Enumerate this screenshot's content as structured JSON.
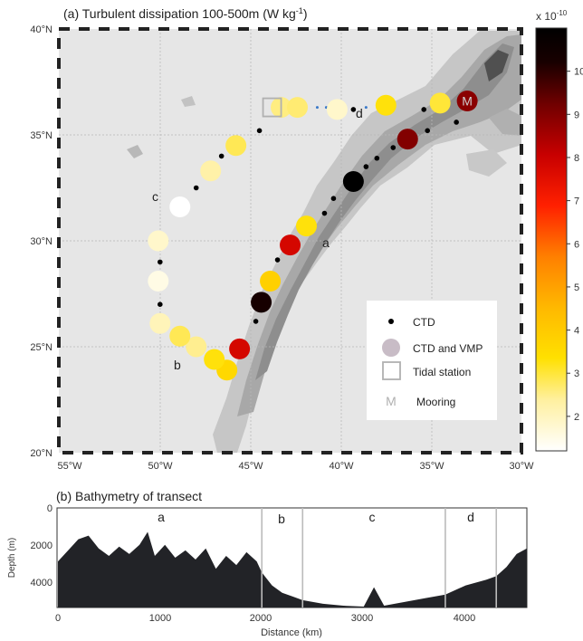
{
  "panel_a": {
    "title_main": "(a) Turbulent dissipation 100-500m (W kg",
    "title_exp": "-1",
    "title_end": ")"
  },
  "panel_b": {
    "title": "(b) Bathymetry of transect"
  },
  "colorbar": {
    "multiplier_base": "x 10",
    "multiplier_exp": "-10"
  },
  "legend": {
    "items": [
      {
        "label": "CTD"
      },
      {
        "label": "CTD and VMP"
      },
      {
        "label": "Tidal station"
      },
      {
        "label": "Mooring"
      }
    ],
    "mooring_letter": "M"
  },
  "section_labels_map": [
    "a",
    "b",
    "c",
    "d"
  ],
  "section_labels_bathy": [
    "a",
    "b",
    "c",
    "d"
  ],
  "chart_data": [
    {
      "type": "scatter",
      "title": "(a) Turbulent dissipation 100-500m (W kg-1)",
      "x_ticks": [
        "55°W",
        "50°W",
        "45°W",
        "40°W",
        "35°W",
        "30°W"
      ],
      "y_ticks": [
        "20°N",
        "25°N",
        "30°N",
        "35°N",
        "40°N"
      ],
      "xlim": [
        -55,
        -30
      ],
      "ylim": [
        20,
        40
      ],
      "colorbar_ticks": [
        "2",
        "3",
        "4",
        "5",
        "6",
        "7",
        "8",
        "9",
        "10"
      ],
      "colorbar_range": [
        1.2,
        11
      ],
      "colorbar_colors": [
        "#ffffff",
        "#fff0a0",
        "#ffe000",
        "#ffb800",
        "#ff7f00",
        "#ff2000",
        "#c80000",
        "#700000",
        "#180000",
        "#000000"
      ],
      "tidal_station": {
        "lon": -43.8,
        "lat": 36.3
      },
      "mooring": {
        "lon": -33.0,
        "lat": 36.6
      },
      "vmp_stations": [
        {
          "lon": -43.3,
          "lat": 36.3,
          "eps": 2.5
        },
        {
          "lon": -42.4,
          "lat": 36.3,
          "eps": 2.6
        },
        {
          "lon": -40.2,
          "lat": 36.2,
          "eps": 1.8
        },
        {
          "lon": -37.5,
          "lat": 36.4,
          "eps": 3.3
        },
        {
          "lon": -34.5,
          "lat": 36.5,
          "eps": 3.0
        },
        {
          "lon": -33.0,
          "lat": 36.6,
          "eps": 8.5
        },
        {
          "lon": -36.3,
          "lat": 34.8,
          "eps": 8.6
        },
        {
          "lon": -39.3,
          "lat": 32.8,
          "eps": 11.0
        },
        {
          "lon": -41.9,
          "lat": 30.7,
          "eps": 3.3
        },
        {
          "lon": -42.8,
          "lat": 29.8,
          "eps": 7.5
        },
        {
          "lon": -43.9,
          "lat": 28.1,
          "eps": 3.8
        },
        {
          "lon": -44.4,
          "lat": 27.1,
          "eps": 10.0
        },
        {
          "lon": -45.6,
          "lat": 24.9,
          "eps": 7.5
        },
        {
          "lon": -46.3,
          "lat": 23.9,
          "eps": 3.6
        },
        {
          "lon": -47.0,
          "lat": 24.4,
          "eps": 3.3
        },
        {
          "lon": -48.0,
          "lat": 25.0,
          "eps": 2.4
        },
        {
          "lon": -48.9,
          "lat": 25.5,
          "eps": 2.8
        },
        {
          "lon": -50.0,
          "lat": 26.1,
          "eps": 2.0
        },
        {
          "lon": -50.1,
          "lat": 28.1,
          "eps": 1.5
        },
        {
          "lon": -50.1,
          "lat": 30.0,
          "eps": 1.8
        },
        {
          "lon": -48.9,
          "lat": 31.6,
          "eps": 1.2
        },
        {
          "lon": -47.2,
          "lat": 33.3,
          "eps": 2.2
        },
        {
          "lon": -45.8,
          "lat": 34.5,
          "eps": 2.8
        }
      ],
      "ctd_stations": [
        {
          "lon": -44.5,
          "lat": 35.2
        },
        {
          "lon": -46.6,
          "lat": 34.0
        },
        {
          "lon": -48.0,
          "lat": 32.5
        },
        {
          "lon": -50.0,
          "lat": 29.0
        },
        {
          "lon": -50.0,
          "lat": 27.0
        },
        {
          "lon": -39.3,
          "lat": 36.2
        },
        {
          "lon": -35.4,
          "lat": 36.2
        },
        {
          "lon": -33.6,
          "lat": 35.6
        },
        {
          "lon": -35.2,
          "lat": 35.2
        },
        {
          "lon": -37.1,
          "lat": 34.4
        },
        {
          "lon": -38.0,
          "lat": 33.9
        },
        {
          "lon": -38.6,
          "lat": 33.5
        },
        {
          "lon": -40.4,
          "lat": 32.0
        },
        {
          "lon": -40.9,
          "lat": 31.3
        },
        {
          "lon": -43.5,
          "lat": 29.1
        },
        {
          "lon": -44.7,
          "lat": 26.2
        }
      ],
      "path_extra_dots": [
        {
          "lon": -41.3,
          "lat": 36.3
        },
        {
          "lon": -40.8,
          "lat": 36.3
        },
        {
          "lon": -38.6,
          "lat": 36.3
        }
      ]
    },
    {
      "type": "area",
      "title": "(b) Bathymetry of transect",
      "xlabel": "Distance (km)",
      "ylabel": "Depth (m)",
      "x_ticks": [
        "0",
        "1000",
        "2000",
        "3000",
        "4000"
      ],
      "y_ticks": [
        "0",
        "2000",
        "4000"
      ],
      "xlim": [
        0,
        4600
      ],
      "ylim": [
        5400,
        0
      ],
      "section_boundaries_km": [
        2000,
        2400,
        3800,
        4300
      ],
      "depth_profile": [
        {
          "x": 0,
          "y": 2900
        },
        {
          "x": 100,
          "y": 2300
        },
        {
          "x": 200,
          "y": 1700
        },
        {
          "x": 300,
          "y": 1500
        },
        {
          "x": 400,
          "y": 2200
        },
        {
          "x": 500,
          "y": 2600
        },
        {
          "x": 600,
          "y": 2100
        },
        {
          "x": 700,
          "y": 2500
        },
        {
          "x": 800,
          "y": 2000
        },
        {
          "x": 880,
          "y": 1300
        },
        {
          "x": 950,
          "y": 2600
        },
        {
          "x": 1050,
          "y": 2000
        },
        {
          "x": 1150,
          "y": 2700
        },
        {
          "x": 1250,
          "y": 2300
        },
        {
          "x": 1350,
          "y": 2800
        },
        {
          "x": 1450,
          "y": 2200
        },
        {
          "x": 1550,
          "y": 3300
        },
        {
          "x": 1650,
          "y": 2600
        },
        {
          "x": 1750,
          "y": 3100
        },
        {
          "x": 1850,
          "y": 2400
        },
        {
          "x": 1950,
          "y": 2900
        },
        {
          "x": 2000,
          "y": 3500
        },
        {
          "x": 2100,
          "y": 4200
        },
        {
          "x": 2200,
          "y": 4600
        },
        {
          "x": 2300,
          "y": 4800
        },
        {
          "x": 2400,
          "y": 5000
        },
        {
          "x": 2600,
          "y": 5200
        },
        {
          "x": 2800,
          "y": 5300
        },
        {
          "x": 3000,
          "y": 5350
        },
        {
          "x": 3100,
          "y": 4300
        },
        {
          "x": 3200,
          "y": 5300
        },
        {
          "x": 3400,
          "y": 5100
        },
        {
          "x": 3600,
          "y": 4900
        },
        {
          "x": 3800,
          "y": 4700
        },
        {
          "x": 4000,
          "y": 4200
        },
        {
          "x": 4200,
          "y": 3900
        },
        {
          "x": 4300,
          "y": 3700
        },
        {
          "x": 4400,
          "y": 3200
        },
        {
          "x": 4500,
          "y": 2500
        },
        {
          "x": 4600,
          "y": 2200
        }
      ]
    }
  ]
}
